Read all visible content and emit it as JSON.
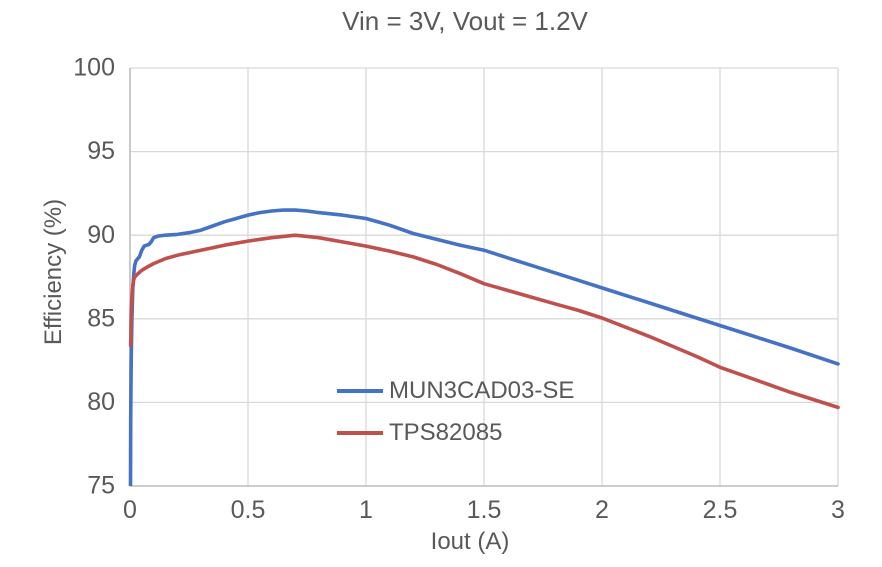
{
  "chart_data": {
    "type": "line",
    "title": "Vin = 3V, Vout = 1.2V",
    "xlabel": "Iout (A)",
    "ylabel": "Efficiency (%)",
    "xlim": [
      0,
      3
    ],
    "ylim": [
      75,
      100
    ],
    "xticks": [
      0,
      0.5,
      1,
      1.5,
      2,
      2.5,
      3
    ],
    "yticks": [
      75,
      80,
      85,
      90,
      95,
      100
    ],
    "grid": true,
    "legend_position": "inside-bottom-center",
    "colors": {
      "text": "#595959",
      "gridline": "#D9D9D9",
      "axis": "#BFBFBF",
      "background": "#FFFFFF"
    },
    "series": [
      {
        "name": "MUN3CAD03-SE",
        "color": "#4472C4",
        "points": [
          [
            0.002,
            75.0
          ],
          [
            0.003,
            79.0
          ],
          [
            0.005,
            82.5
          ],
          [
            0.008,
            85.0
          ],
          [
            0.012,
            86.8
          ],
          [
            0.016,
            87.7
          ],
          [
            0.02,
            88.2
          ],
          [
            0.025,
            88.45
          ],
          [
            0.03,
            88.55
          ],
          [
            0.04,
            88.7
          ],
          [
            0.05,
            89.1
          ],
          [
            0.06,
            89.35
          ],
          [
            0.08,
            89.45
          ],
          [
            0.09,
            89.6
          ],
          [
            0.1,
            89.85
          ],
          [
            0.12,
            89.95
          ],
          [
            0.15,
            90.0
          ],
          [
            0.2,
            90.05
          ],
          [
            0.25,
            90.15
          ],
          [
            0.3,
            90.3
          ],
          [
            0.35,
            90.55
          ],
          [
            0.4,
            90.8
          ],
          [
            0.45,
            91.0
          ],
          [
            0.5,
            91.2
          ],
          [
            0.55,
            91.35
          ],
          [
            0.6,
            91.45
          ],
          [
            0.65,
            91.5
          ],
          [
            0.7,
            91.5
          ],
          [
            0.75,
            91.45
          ],
          [
            0.8,
            91.35
          ],
          [
            0.9,
            91.2
          ],
          [
            1.0,
            91.0
          ],
          [
            1.1,
            90.6
          ],
          [
            1.2,
            90.1
          ],
          [
            1.3,
            89.75
          ],
          [
            1.4,
            89.4
          ],
          [
            1.5,
            89.1
          ],
          [
            1.6,
            88.65
          ],
          [
            1.7,
            88.2
          ],
          [
            1.8,
            87.75
          ],
          [
            1.9,
            87.3
          ],
          [
            2.0,
            86.85
          ],
          [
            2.2,
            85.95
          ],
          [
            2.4,
            85.05
          ],
          [
            2.5,
            84.6
          ],
          [
            2.6,
            84.15
          ],
          [
            2.8,
            83.25
          ],
          [
            3.0,
            82.3
          ]
        ]
      },
      {
        "name": "TPS82085",
        "color": "#C0504D",
        "points": [
          [
            0.003,
            83.4
          ],
          [
            0.005,
            85.2
          ],
          [
            0.008,
            86.3
          ],
          [
            0.012,
            87.0
          ],
          [
            0.016,
            87.35
          ],
          [
            0.02,
            87.5
          ],
          [
            0.03,
            87.65
          ],
          [
            0.05,
            87.9
          ],
          [
            0.08,
            88.15
          ],
          [
            0.1,
            88.3
          ],
          [
            0.15,
            88.6
          ],
          [
            0.2,
            88.8
          ],
          [
            0.25,
            88.95
          ],
          [
            0.3,
            89.1
          ],
          [
            0.4,
            89.4
          ],
          [
            0.5,
            89.65
          ],
          [
            0.6,
            89.85
          ],
          [
            0.7,
            90.0
          ],
          [
            0.8,
            89.85
          ],
          [
            0.9,
            89.6
          ],
          [
            1.0,
            89.35
          ],
          [
            1.1,
            89.05
          ],
          [
            1.2,
            88.7
          ],
          [
            1.3,
            88.25
          ],
          [
            1.4,
            87.7
          ],
          [
            1.5,
            87.1
          ],
          [
            1.6,
            86.7
          ],
          [
            1.7,
            86.3
          ],
          [
            1.8,
            85.9
          ],
          [
            1.9,
            85.5
          ],
          [
            2.0,
            85.05
          ],
          [
            2.1,
            84.5
          ],
          [
            2.2,
            83.95
          ],
          [
            2.3,
            83.35
          ],
          [
            2.4,
            82.75
          ],
          [
            2.5,
            82.1
          ],
          [
            2.6,
            81.6
          ],
          [
            2.7,
            81.1
          ],
          [
            2.8,
            80.6
          ],
          [
            2.9,
            80.15
          ],
          [
            3.0,
            79.7
          ]
        ]
      }
    ]
  }
}
